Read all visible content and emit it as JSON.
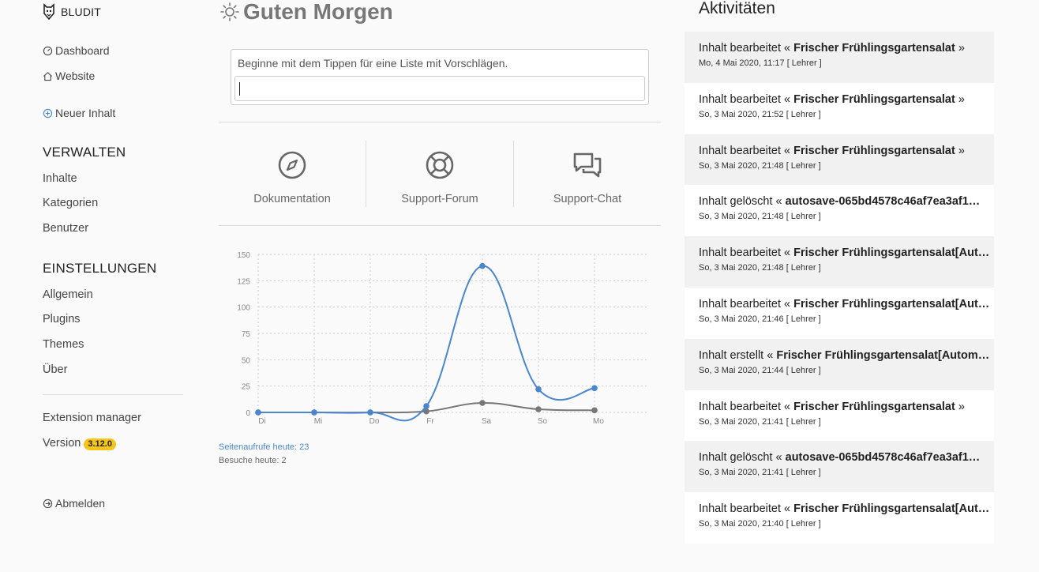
{
  "sidebar": {
    "brand": "BLUDIT",
    "dashboard": "Dashboard",
    "website": "Website",
    "new_content": "Neuer Inhalt",
    "manage_title": "VERWALTEN",
    "manage_items": [
      "Inhalte",
      "Kategorien",
      "Benutzer"
    ],
    "settings_title": "EINSTELLUNGEN",
    "settings_items": [
      "Allgemein",
      "Plugins",
      "Themes",
      "Über"
    ],
    "extension_manager": "Extension manager",
    "version_label": "Version",
    "version_badge": "3.12.0",
    "logout": "Abmelden"
  },
  "main": {
    "greeting": "Guten Morgen",
    "search_hint": "Beginne mit dem Tippen für eine Liste mit Vorschlägen.",
    "search_value": "",
    "quick_links": [
      {
        "label": "Dokumentation",
        "icon": "compass-icon"
      },
      {
        "label": "Support-Forum",
        "icon": "lifebuoy-icon"
      },
      {
        "label": "Support-Chat",
        "icon": "chat-icon"
      }
    ],
    "stats": {
      "pageviews": "Seitenaufrufe heute: 23",
      "visits": "Besuche heute: 2"
    }
  },
  "chart_data": {
    "type": "line",
    "categories": [
      "Di",
      "Mi",
      "Do",
      "Fr",
      "Sa",
      "So",
      "Mo"
    ],
    "ylim": [
      0,
      150
    ],
    "yticks": [
      0,
      25,
      50,
      75,
      100,
      125,
      150
    ],
    "grid": true,
    "series": [
      {
        "values": [
          0,
          0,
          0,
          6,
          139,
          22,
          23
        ],
        "color": "#4a86cf"
      },
      {
        "values": [
          0,
          0,
          0,
          1,
          9,
          3,
          2
        ],
        "color": "#777777"
      }
    ]
  },
  "activities": {
    "title": "Aktivitäten",
    "items": [
      {
        "action": "Inhalt bearbeitet «",
        "target": "Frischer Frühlingsgartensalat",
        "close": "»",
        "date": "Mo, 4 Mai 2020, 11:17 [ Lehrer ]"
      },
      {
        "action": "Inhalt bearbeitet «",
        "target": "Frischer Frühlingsgartensalat",
        "close": "»",
        "date": "So, 3 Mai 2020, 21:52 [ Lehrer ]"
      },
      {
        "action": "Inhalt bearbeitet «",
        "target": "Frischer Frühlingsgartensalat",
        "close": "»",
        "date": "So, 3 Mai 2020, 21:48 [ Lehrer ]"
      },
      {
        "action": "Inhalt gelöscht «",
        "target": "autosave-065bd4578c46af7ea3af1…",
        "close": "",
        "date": "So, 3 Mai 2020, 21:48 [ Lehrer ]"
      },
      {
        "action": "Inhalt bearbeitet «",
        "target": "Frischer Frühlingsgartensalat[Aut…",
        "close": "",
        "date": "So, 3 Mai 2020, 21:48 [ Lehrer ]"
      },
      {
        "action": "Inhalt bearbeitet «",
        "target": "Frischer Frühlingsgartensalat[Aut…",
        "close": "",
        "date": "So, 3 Mai 2020, 21:46 [ Lehrer ]"
      },
      {
        "action": "Inhalt erstellt «",
        "target": "Frischer Frühlingsgartensalat[Autom…",
        "close": "",
        "date": "So, 3 Mai 2020, 21:44 [ Lehrer ]"
      },
      {
        "action": "Inhalt bearbeitet «",
        "target": "Frischer Frühlingsgartensalat",
        "close": "»",
        "date": "So, 3 Mai 2020, 21:41 [ Lehrer ]"
      },
      {
        "action": "Inhalt gelöscht «",
        "target": "autosave-065bd4578c46af7ea3af1…",
        "close": "",
        "date": "So, 3 Mai 2020, 21:41 [ Lehrer ]"
      },
      {
        "action": "Inhalt bearbeitet «",
        "target": "Frischer Frühlingsgartensalat[Aut…",
        "close": "",
        "date": "So, 3 Mai 2020, 21:40 [ Lehrer ]"
      }
    ]
  }
}
